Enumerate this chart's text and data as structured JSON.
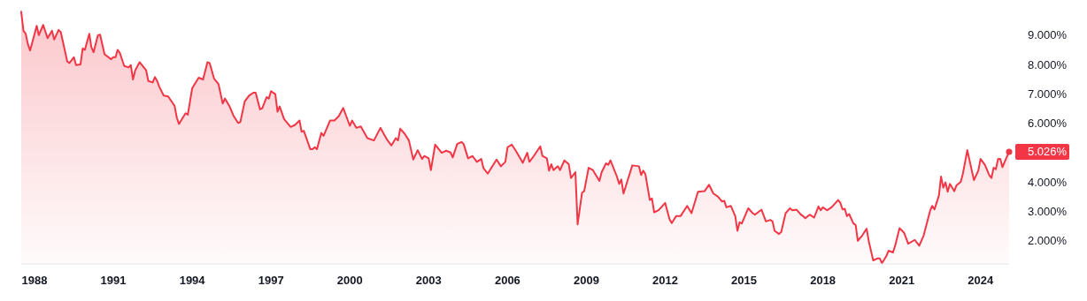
{
  "chart_data": {
    "type": "area",
    "x": [
      "1987-07",
      "1987-08",
      "1987-09",
      "1987-10",
      "1987-11",
      "1988-02",
      "1988-03",
      "1988-05",
      "1988-07",
      "1988-09",
      "1988-10",
      "1988-12",
      "1989-01",
      "1989-04",
      "1989-05",
      "1989-07",
      "1989-08",
      "1989-10",
      "1989-11",
      "1989-12",
      "1990-02",
      "1990-03",
      "1990-04",
      "1990-06",
      "1990-07",
      "1990-09",
      "1990-12",
      "1991-01",
      "1991-02",
      "1991-03",
      "1991-04",
      "1991-06",
      "1991-08",
      "1991-09",
      "1991-10",
      "1991-11",
      "1992-01",
      "1992-04",
      "1992-05",
      "1992-07",
      "1992-08",
      "1992-09",
      "1992-10",
      "1992-12",
      "1993-02",
      "1993-05",
      "1993-06",
      "1993-07",
      "1993-10",
      "1993-11",
      "1994-01",
      "1994-04",
      "1994-06",
      "1994-08",
      "1994-09",
      "1994-11",
      "1995-01",
      "1995-03",
      "1995-04",
      "1995-06",
      "1995-08",
      "1995-10",
      "1995-11",
      "1996-01",
      "1996-03",
      "1996-05",
      "1996-06",
      "1996-08",
      "1996-09",
      "1996-11",
      "1996-12",
      "1997-01",
      "1997-03",
      "1997-04",
      "1997-05",
      "1997-07",
      "1997-10",
      "1997-12",
      "1998-02",
      "1998-03",
      "1998-04",
      "1998-07",
      "1998-08",
      "1998-09",
      "1998-10",
      "1998-12",
      "1999-01",
      "1999-04",
      "1999-06",
      "1999-08",
      "1999-10",
      "2000-01",
      "2000-02",
      "2000-04",
      "2000-06",
      "2000-09",
      "2000-12",
      "2001-03",
      "2001-06",
      "2001-08",
      "2001-10",
      "2001-11",
      "2001-12",
      "2002-02",
      "2002-04",
      "2002-06",
      "2002-08",
      "2002-10",
      "2002-11",
      "2003-01",
      "2003-02",
      "2003-04",
      "2003-07",
      "2003-09",
      "2003-11",
      "2003-12",
      "2004-02",
      "2004-04",
      "2004-05",
      "2004-07",
      "2004-09",
      "2004-11",
      "2005-01",
      "2005-02",
      "2005-04",
      "2005-05",
      "2005-08",
      "2005-10",
      "2005-12",
      "2006-01",
      "2006-03",
      "2006-05",
      "2006-07",
      "2006-08",
      "2006-10",
      "2006-11",
      "2007-01",
      "2007-04",
      "2007-05",
      "2007-07",
      "2007-08",
      "2007-09",
      "2007-10",
      "2007-12",
      "2008-01",
      "2008-03",
      "2008-05",
      "2008-06",
      "2008-08",
      "2008-09",
      "2008-11",
      "2008-12",
      "2009-02",
      "2009-04",
      "2009-07",
      "2009-08",
      "2009-10",
      "2009-11",
      "2009-12",
      "2010-03",
      "2010-04",
      "2010-05",
      "2010-06",
      "2010-08",
      "2010-10",
      "2011-01",
      "2011-02",
      "2011-03",
      "2011-04",
      "2011-06",
      "2011-07",
      "2011-08",
      "2011-10",
      "2012-01",
      "2012-03",
      "2012-04",
      "2012-06",
      "2012-08",
      "2012-11",
      "2013-01",
      "2013-04",
      "2013-07",
      "2013-09",
      "2013-11",
      "2014-01",
      "2014-03",
      "2014-04",
      "2014-05",
      "2014-07",
      "2014-09",
      "2014-10",
      "2014-11",
      "2014-12",
      "2015-03",
      "2015-05",
      "2015-06",
      "2015-09",
      "2015-11",
      "2016-01",
      "2016-02",
      "2016-03",
      "2016-05",
      "2016-06",
      "2016-08",
      "2016-10",
      "2016-11",
      "2017-01",
      "2017-03",
      "2017-04",
      "2017-05",
      "2017-07",
      "2017-09",
      "2017-11",
      "2017-12",
      "2018-01",
      "2018-03",
      "2018-05",
      "2018-08",
      "2018-09",
      "2018-10",
      "2018-11",
      "2018-12",
      "2019-01",
      "2019-03",
      "2019-04",
      "2019-05",
      "2019-07",
      "2019-09",
      "2019-10",
      "2019-12",
      "2020-02",
      "2020-03",
      "2020-04",
      "2020-06",
      "2020-07",
      "2020-09",
      "2020-10",
      "2020-12",
      "2021-02",
      "2021-04",
      "2021-07",
      "2021-09",
      "2021-11",
      "2021-12",
      "2022-02",
      "2022-03",
      "2022-04",
      "2022-06",
      "2022-07",
      "2022-08",
      "2022-09",
      "2022-10",
      "2022-11",
      "2023-01",
      "2023-02",
      "2023-04",
      "2023-05",
      "2023-07",
      "2023-10",
      "2023-12",
      "2024-01",
      "2024-03",
      "2024-05",
      "2024-06",
      "2024-07",
      "2024-08",
      "2024-09",
      "2024-10",
      "2024-11",
      "2024-12",
      "2025-02"
    ],
    "series": [
      {
        "color": "#f23645",
        "values": [
          9.8,
          9.15,
          9.05,
          8.7,
          8.48,
          9.32,
          9.0,
          9.35,
          8.9,
          9.15,
          8.85,
          9.18,
          9.1,
          8.1,
          8.05,
          8.25,
          7.98,
          8.0,
          8.55,
          8.5,
          9.05,
          8.6,
          8.42,
          9.0,
          9.02,
          8.35,
          8.18,
          8.25,
          8.25,
          8.5,
          8.4,
          7.95,
          7.9,
          7.98,
          7.49,
          7.8,
          8.08,
          7.8,
          7.44,
          7.39,
          7.57,
          7.44,
          7.24,
          6.94,
          6.91,
          6.59,
          6.19,
          5.97,
          6.34,
          6.29,
          7.19,
          7.55,
          7.49,
          8.08,
          8.05,
          7.52,
          7.34,
          6.67,
          6.84,
          6.59,
          6.24,
          6.01,
          6.04,
          6.74,
          6.94,
          7.04,
          7.04,
          6.47,
          6.51,
          6.89,
          6.84,
          7.09,
          6.99,
          6.39,
          6.57,
          6.14,
          5.87,
          5.94,
          6.09,
          5.71,
          5.74,
          5.11,
          5.11,
          5.18,
          5.11,
          5.67,
          5.57,
          6.09,
          6.09,
          6.24,
          6.52,
          5.91,
          6.09,
          5.84,
          5.89,
          5.49,
          5.41,
          5.84,
          5.44,
          5.24,
          5.49,
          5.41,
          5.81,
          5.64,
          5.41,
          4.76,
          5.08,
          4.78,
          4.88,
          4.8,
          4.4,
          5.27,
          4.99,
          5.06,
          5.0,
          4.83,
          5.29,
          5.36,
          5.29,
          4.8,
          4.88,
          4.68,
          4.78,
          4.46,
          4.28,
          4.4,
          4.76,
          4.53,
          4.68,
          5.18,
          5.27,
          5.04,
          4.78,
          4.65,
          4.99,
          4.68,
          4.88,
          5.21,
          4.88,
          4.8,
          4.38,
          4.6,
          4.4,
          4.53,
          4.4,
          4.73,
          4.6,
          4.13,
          4.33,
          2.55,
          3.63,
          3.68,
          4.48,
          4.4,
          4.03,
          4.33,
          4.63,
          4.58,
          4.73,
          4.18,
          3.93,
          4.08,
          3.6,
          4.08,
          4.56,
          4.53,
          4.23,
          4.38,
          4.26,
          3.38,
          3.43,
          2.96,
          3.03,
          3.28,
          2.73,
          2.59,
          2.83,
          2.83,
          3.18,
          2.93,
          3.66,
          3.68,
          3.9,
          3.6,
          3.5,
          3.33,
          3.35,
          3.13,
          3.18,
          2.83,
          2.33,
          2.62,
          2.58,
          3.1,
          2.93,
          2.88,
          3.05,
          2.65,
          2.7,
          2.65,
          2.33,
          2.22,
          2.29,
          2.93,
          3.1,
          3.03,
          3.05,
          2.88,
          2.83,
          2.76,
          2.88,
          2.78,
          3.16,
          3.03,
          3.13,
          3.03,
          3.13,
          3.38,
          3.28,
          3.06,
          3.08,
          2.83,
          2.9,
          2.58,
          2.53,
          1.99,
          2.17,
          2.4,
          1.97,
          1.32,
          1.39,
          1.39,
          1.22,
          1.47,
          1.65,
          1.59,
          1.82,
          2.42,
          2.27,
          1.89,
          2.02,
          1.82,
          2.17,
          2.45,
          3.03,
          3.18,
          3.06,
          3.53,
          4.18,
          3.8,
          3.98,
          3.66,
          3.93,
          3.68,
          3.88,
          4.0,
          4.28,
          5.08,
          4.06,
          4.38,
          4.78,
          4.58,
          4.23,
          4.13,
          4.48,
          4.43,
          4.78,
          4.78,
          4.5,
          4.68,
          5.026
        ]
      }
    ],
    "xlim": [
      "1987-07",
      "2025-02"
    ],
    "xticks": [
      "1988",
      "1991",
      "1994",
      "1997",
      "2000",
      "2003",
      "2006",
      "2009",
      "2012",
      "2015",
      "2018",
      "2021",
      "2024"
    ],
    "ylim": [
      1.2,
      10.2
    ],
    "yticks": [
      {
        "value": 2,
        "label": "2.000%"
      },
      {
        "value": 3,
        "label": "3.000%"
      },
      {
        "value": 4,
        "label": "4.000%"
      },
      {
        "value": 6,
        "label": "6.000%"
      },
      {
        "value": 7,
        "label": "7.000%"
      },
      {
        "value": 8,
        "label": "8.000%"
      },
      {
        "value": 9,
        "label": "9.000%"
      }
    ],
    "annotations": [
      {
        "text": "5.026%",
        "x": "2025-02",
        "y": 5.026
      }
    ]
  }
}
